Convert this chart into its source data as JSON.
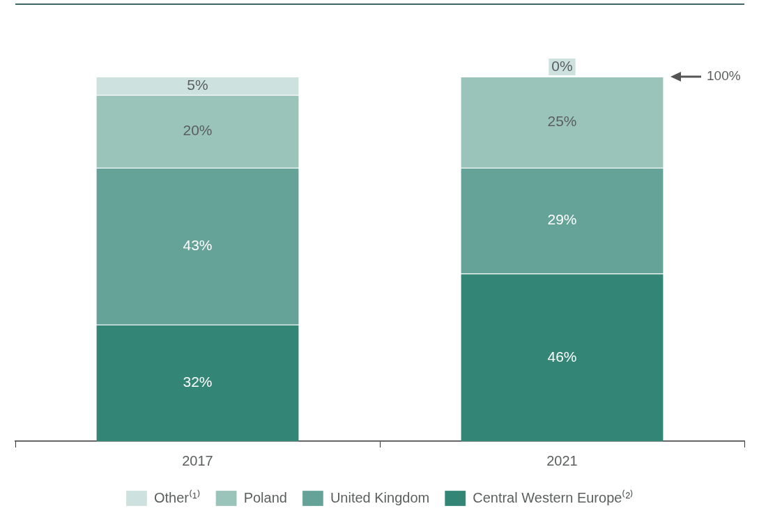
{
  "chart_data": {
    "type": "bar",
    "stacked": true,
    "categories": [
      "2017",
      "2021"
    ],
    "series": [
      {
        "name": "Central Western Europe⁽²⁾",
        "color": "#338576",
        "values": [
          32,
          46
        ],
        "value_labels": [
          "32%",
          "46%"
        ]
      },
      {
        "name": "United Kingdom",
        "color": "#65a399",
        "values": [
          43,
          29
        ],
        "value_labels": [
          "43%",
          "29%"
        ]
      },
      {
        "name": "Poland",
        "color": "#9ac3ba",
        "values": [
          20,
          25
        ],
        "value_labels": [
          "20%",
          "25%"
        ]
      },
      {
        "name": "Other⁽¹⁾",
        "color": "#cde2de",
        "values": [
          5,
          0
        ],
        "value_labels": [
          "5%",
          "0%"
        ]
      }
    ],
    "legend": "bottom",
    "annotations": [
      "100%"
    ]
  }
}
